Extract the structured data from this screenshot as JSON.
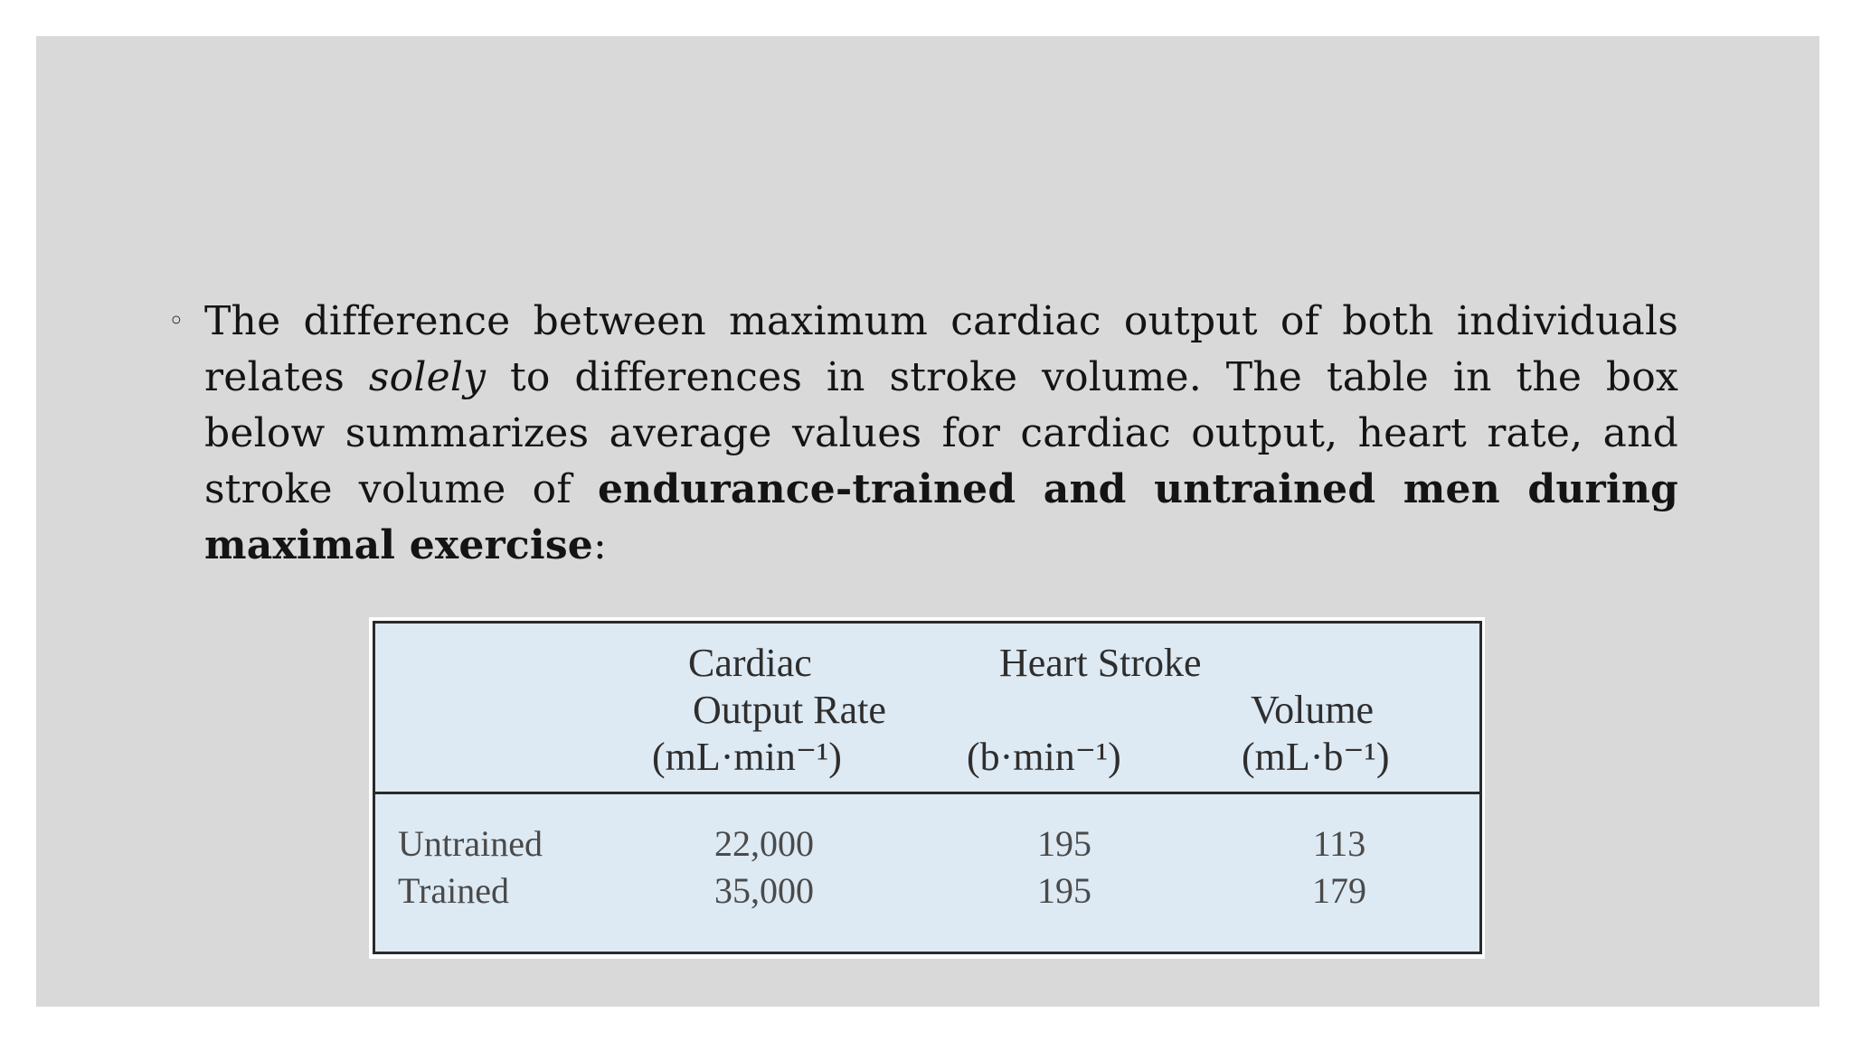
{
  "bullet": {
    "part1": "The difference between maximum cardiac output of both individuals relates ",
    "emphasis": "solely",
    "part2": " to differences in stroke volume. The table in the box below summarizes average values for cardiac output, heart rate, and stroke volume of ",
    "bold": "endurance-trained and untrained men during maximal exercise",
    "part3": ":"
  },
  "table": {
    "headers": {
      "col1_line1": "Cardiac",
      "col1_line2": "Output Rate",
      "col1_line3": "(mL·min⁻¹)",
      "col2_line1": "Heart Stroke",
      "col2_line3": "(b·min⁻¹)",
      "col3_line2": "Volume",
      "col3_line3": "(mL·b⁻¹)"
    },
    "rows": [
      {
        "label": "Untrained",
        "cardiac_output": "22,000",
        "heart_rate": "195",
        "stroke_volume": "113"
      },
      {
        "label": "Trained",
        "cardiac_output": "35,000",
        "heart_rate": "195",
        "stroke_volume": "179"
      }
    ]
  }
}
